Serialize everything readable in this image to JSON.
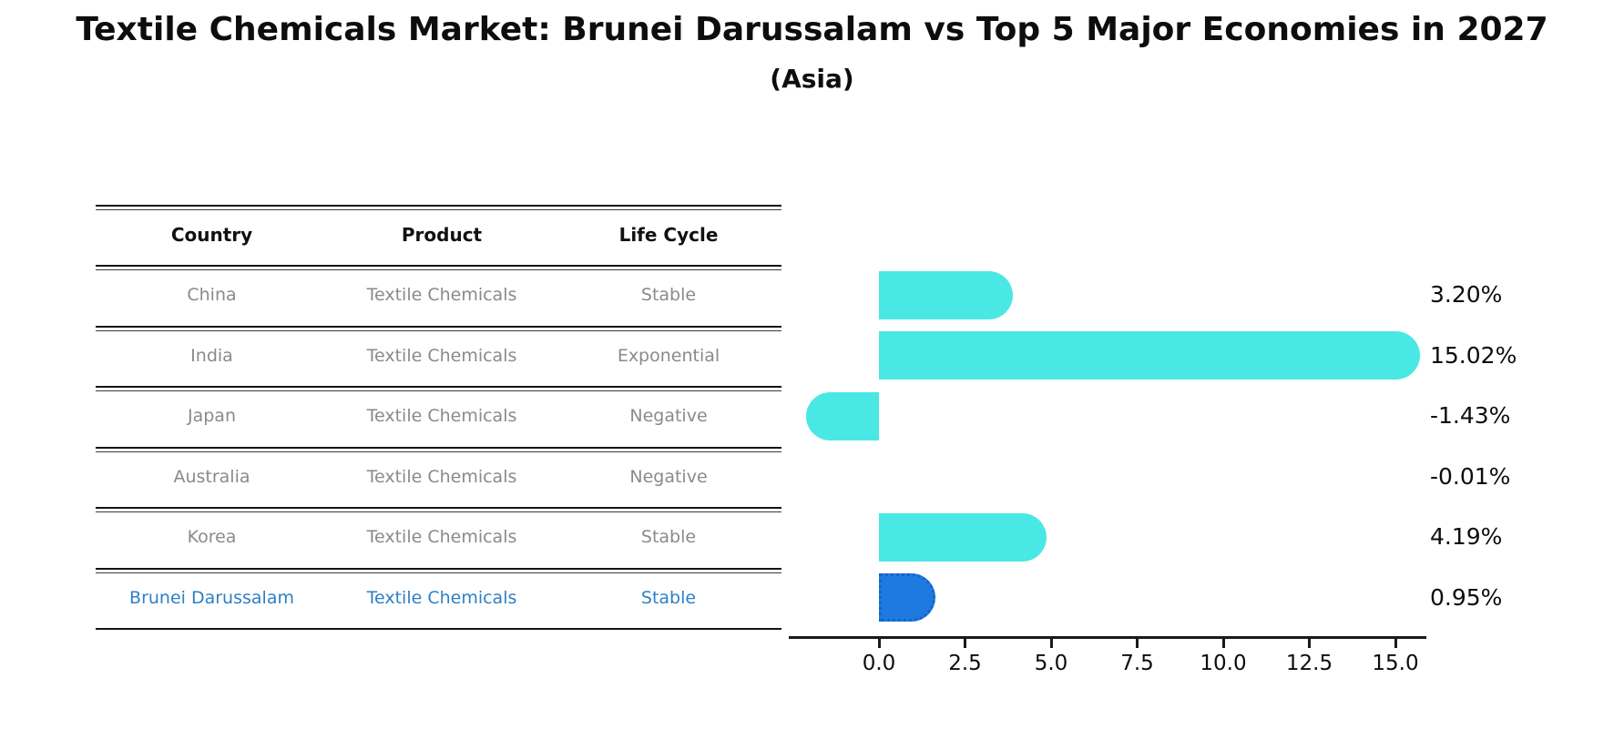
{
  "title": "Textile Chemicals Market: Brunei Darussalam vs Top 5 Major Economies in 2027",
  "subtitle": "(Asia)",
  "table": {
    "headers": [
      "Country",
      "Product",
      "Life Cycle"
    ],
    "rows": [
      {
        "country": "China",
        "product": "Textile Chemicals",
        "life_cycle": "Stable",
        "highlight": false
      },
      {
        "country": "India",
        "product": "Textile Chemicals",
        "life_cycle": "Exponential",
        "highlight": false
      },
      {
        "country": "Japan",
        "product": "Textile Chemicals",
        "life_cycle": "Negative",
        "highlight": false
      },
      {
        "country": "Australia",
        "product": "Textile Chemicals",
        "life_cycle": "Negative",
        "highlight": false
      },
      {
        "country": "Korea",
        "product": "Textile Chemicals",
        "life_cycle": "Stable",
        "highlight": false
      },
      {
        "country": "Brunei Darussalam",
        "product": "Textile Chemicals",
        "life_cycle": "Stable",
        "highlight": true
      }
    ]
  },
  "chart_data": {
    "type": "bar",
    "orientation": "horizontal",
    "categories": [
      "China",
      "India",
      "Japan",
      "Australia",
      "Korea",
      "Brunei Darussalam"
    ],
    "values": [
      3.2,
      15.02,
      -1.43,
      -0.01,
      4.19,
      0.95
    ],
    "value_labels": [
      "3.20%",
      "15.02%",
      "-1.43%",
      "-0.01%",
      "4.19%",
      "0.95%"
    ],
    "x_tick_labels": [
      "0.0",
      "2.5",
      "5.0",
      "7.5",
      "10.0",
      "12.5",
      "15.0"
    ],
    "x_tick_values": [
      0,
      2.5,
      5,
      7.5,
      10,
      12.5,
      15
    ],
    "xlim": [
      -2.6,
      15.9
    ],
    "grid": false,
    "legend": "none",
    "bar_color": "#4ae8e4",
    "highlight_color": "#1e7ae0",
    "highlight_border_color": "#1563c9",
    "highlight_index": 5
  },
  "colors": {
    "row_text": "#8a8a8a",
    "highlight_text": "#2e80c7",
    "header_text": "#111111",
    "axis": "#1a1a1a"
  }
}
